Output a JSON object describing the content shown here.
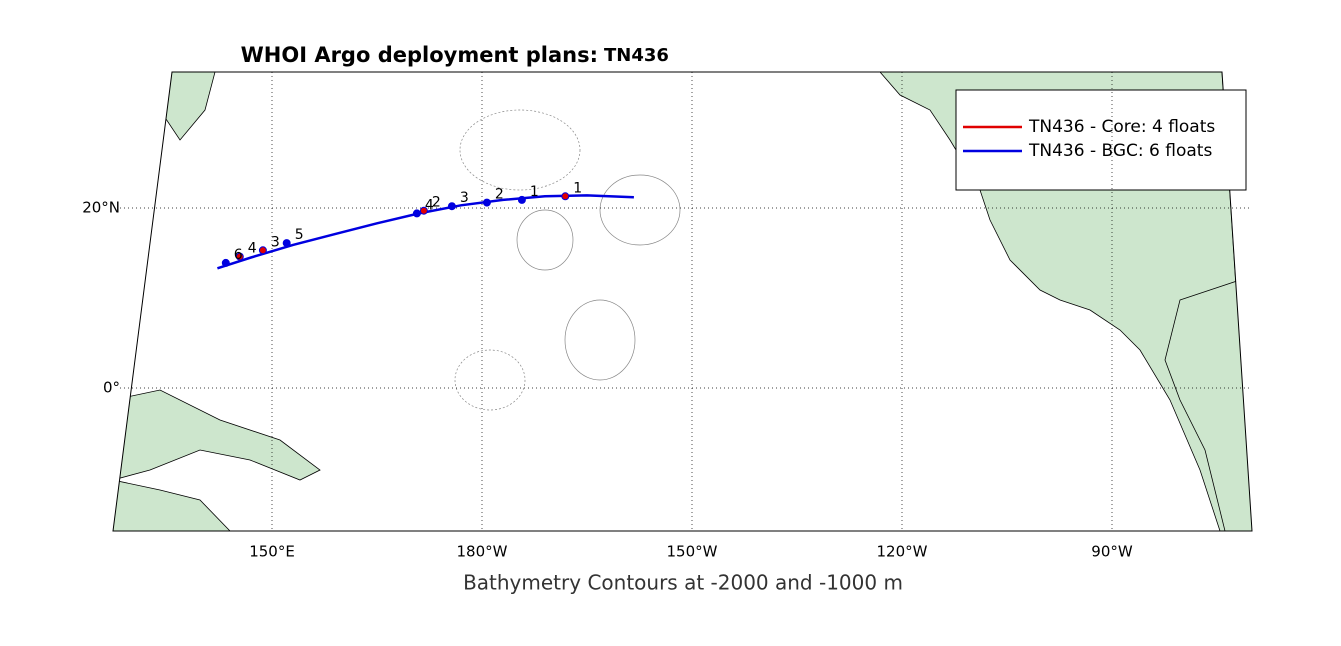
{
  "title": "WHOI Argo deployment plans:",
  "cruise": "TN436",
  "legend": [
    {
      "label": "TN436 - Core:  4 floats",
      "color": "#e00000"
    },
    {
      "label": "TN436 - BGC:  6 floats",
      "color": "#0000e0"
    }
  ],
  "lon_ticks": [
    {
      "value": 150,
      "label": "150°E"
    },
    {
      "value": 180,
      "label": "180°W"
    },
    {
      "value": 210,
      "label": "150°W"
    },
    {
      "value": 240,
      "label": "120°W"
    },
    {
      "value": 270,
      "label": "90°W"
    }
  ],
  "lat_ticks": [
    {
      "value": 20,
      "label": "20°N"
    },
    {
      "value": 0,
      "label": "0°"
    }
  ],
  "xlabel": "Bathymetry Contours at -2000 and -1000 m",
  "track": {
    "lon": [
      201.7,
      195,
      189,
      183,
      177,
      171,
      165,
      159,
      153,
      147,
      142.2
    ],
    "lat": [
      21.2,
      21.4,
      21.3,
      20.9,
      20.3,
      19.4,
      18.3,
      17.1,
      15.9,
      14.5,
      13.3
    ]
  },
  "floats": [
    {
      "lon": 191.9,
      "lat": 21.3,
      "kind": 0,
      "label": "1"
    },
    {
      "lon": 185.7,
      "lat": 20.9,
      "kind": 1,
      "label": "1"
    },
    {
      "lon": 180.7,
      "lat": 20.6,
      "kind": 1,
      "label": "2"
    },
    {
      "lon": 175.7,
      "lat": 20.2,
      "kind": 1,
      "label": "3"
    },
    {
      "lon": 171.7,
      "lat": 19.7,
      "kind": 0,
      "label": "2"
    },
    {
      "lon": 170.7,
      "lat": 19.4,
      "kind": 1,
      "label": "4"
    },
    {
      "lon": 152.1,
      "lat": 16.1,
      "kind": 1,
      "label": "5"
    },
    {
      "lon": 148.7,
      "lat": 15.3,
      "kind": 0,
      "label": "3"
    },
    {
      "lon": 145.4,
      "lat": 14.6,
      "kind": 0,
      "label": "4"
    },
    {
      "lon": 143.4,
      "lat": 13.9,
      "kind": 1,
      "label": "6"
    }
  ]
}
